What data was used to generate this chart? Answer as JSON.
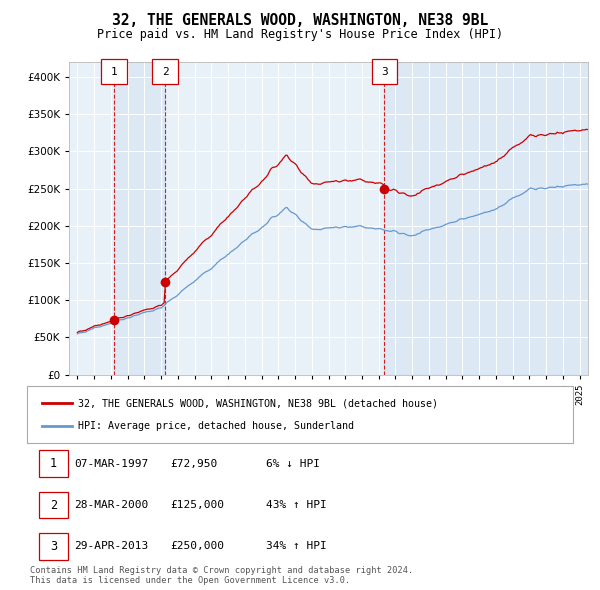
{
  "title": "32, THE GENERALS WOOD, WASHINGTON, NE38 9BL",
  "subtitle": "Price paid vs. HM Land Registry's House Price Index (HPI)",
  "legend_line1": "32, THE GENERALS WOOD, WASHINGTON, NE38 9BL (detached house)",
  "legend_line2": "HPI: Average price, detached house, Sunderland",
  "transactions": [
    {
      "num": 1,
      "date": "07-MAR-1997",
      "date_x": 1997.19,
      "price": 72950,
      "pct": "6% ↓ HPI"
    },
    {
      "num": 2,
      "date": "28-MAR-2000",
      "date_x": 2000.24,
      "price": 125000,
      "pct": "43% ↑ HPI"
    },
    {
      "num": 3,
      "date": "29-APR-2013",
      "date_x": 2013.33,
      "price": 250000,
      "pct": "34% ↑ HPI"
    }
  ],
  "footer": "Contains HM Land Registry data © Crown copyright and database right 2024.\nThis data is licensed under the Open Government Licence v3.0.",
  "ylim": [
    0,
    420000
  ],
  "yticks": [
    0,
    50000,
    100000,
    150000,
    200000,
    250000,
    300000,
    350000,
    400000
  ],
  "xlim_start": 1994.5,
  "xlim_end": 2025.5,
  "plot_bg": "#e8f0f8",
  "red_color": "#cc0000",
  "blue_color": "#6699cc",
  "grid_color": "#ffffff",
  "vline_color": "#cc0000"
}
